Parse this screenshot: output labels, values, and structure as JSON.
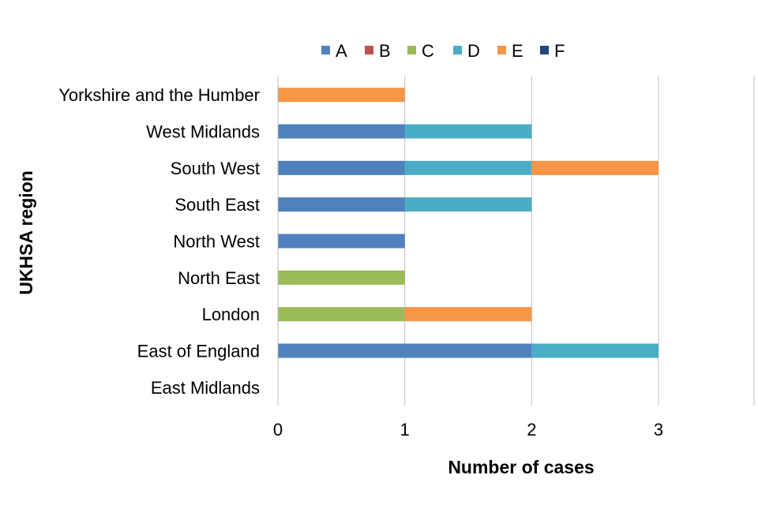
{
  "chart_data": {
    "type": "bar",
    "orientation": "horizontal",
    "stacked": true,
    "categories": [
      "Yorkshire and the Humber",
      "West Midlands",
      "South West",
      "South East",
      "North West",
      "North East",
      "London",
      "East of England",
      "East Midlands"
    ],
    "series": [
      {
        "name": "A",
        "color": "#4F81BD",
        "values": [
          0,
          1,
          1,
          1,
          1,
          0,
          0,
          2,
          0
        ]
      },
      {
        "name": "B",
        "color": "#C0504D",
        "values": [
          0,
          0,
          0,
          0,
          0,
          0,
          0,
          0,
          0
        ]
      },
      {
        "name": "C",
        "color": "#9BBB59",
        "values": [
          0,
          0,
          0,
          0,
          0,
          1,
          1,
          0,
          0
        ]
      },
      {
        "name": "D",
        "color": "#4BACC6",
        "values": [
          0,
          1,
          1,
          1,
          0,
          0,
          0,
          1,
          0
        ]
      },
      {
        "name": "E",
        "color": "#F79646",
        "values": [
          1,
          0,
          1,
          0,
          0,
          0,
          1,
          0,
          0
        ]
      },
      {
        "name": "F",
        "color": "#1F497D",
        "values": [
          0,
          0,
          0,
          0,
          0,
          0,
          0,
          0,
          0
        ]
      }
    ],
    "xlabel": "Number of cases",
    "ylabel": "UKHSA region",
    "xlim": [
      0,
      3.8
    ],
    "x_ticks": [
      "0",
      "1",
      "2",
      "3"
    ],
    "grid": "vertical",
    "legend": "top"
  }
}
